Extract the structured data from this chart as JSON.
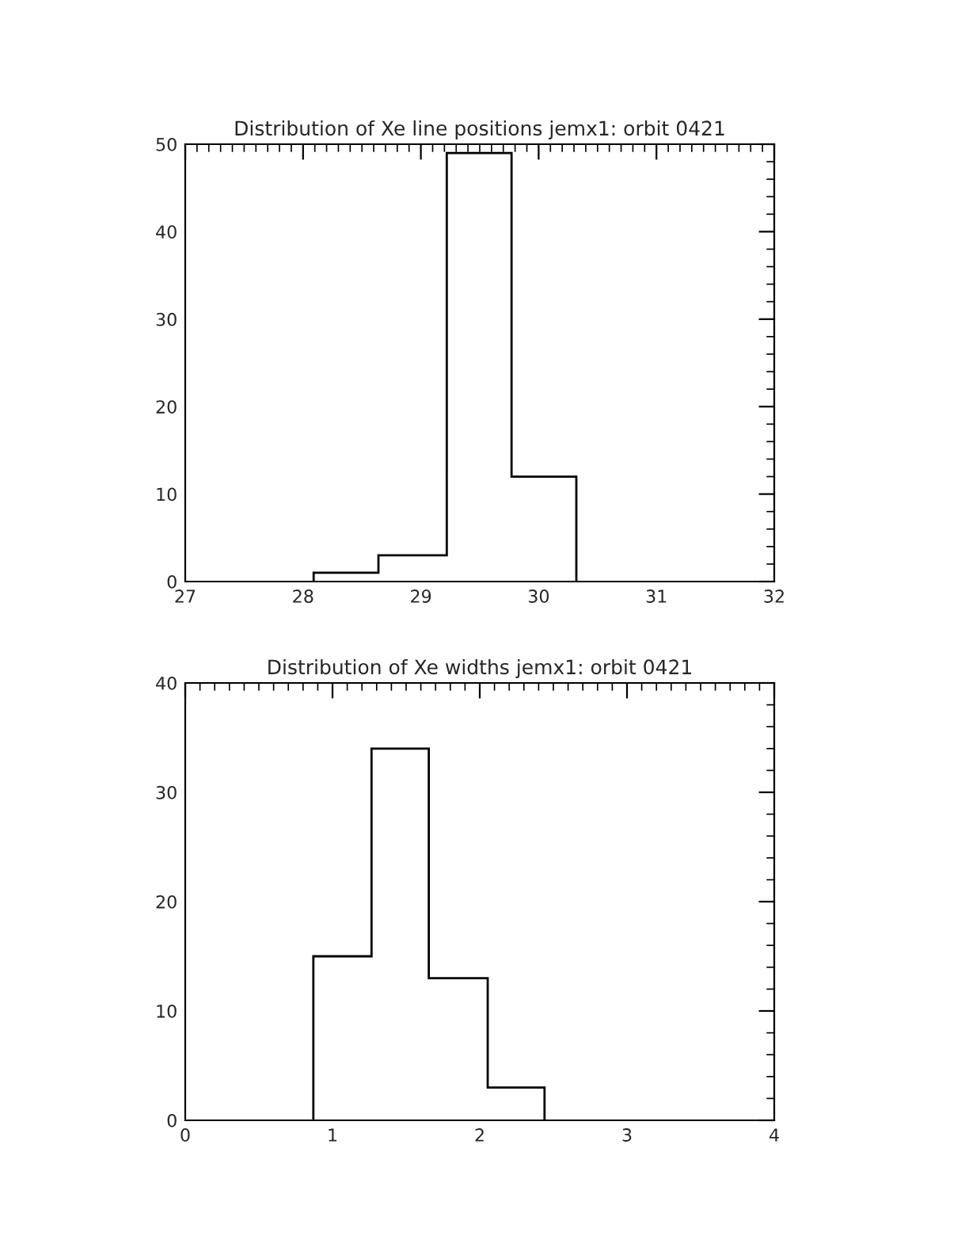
{
  "chart_data": [
    {
      "type": "histogram",
      "title": "Distribution of Xe line positions jemx1: orbit 0421",
      "bins": [
        28.09,
        28.64,
        29.22,
        29.77,
        30.32
      ],
      "values": [
        1,
        3,
        49,
        12
      ],
      "color": "#000000",
      "xlim": [
        27,
        32
      ],
      "ylim": [
        0,
        50
      ],
      "xticks": [
        27,
        28,
        29,
        30,
        31,
        32
      ],
      "yticks": [
        0,
        10,
        20,
        30,
        40,
        50
      ],
      "grid": false
    },
    {
      "type": "histogram",
      "title": "Distribution of Xe widths jemx1: orbit 0421",
      "bins": [
        0.87,
        1.265,
        1.654,
        2.054,
        2.44
      ],
      "values": [
        15,
        34,
        13,
        3
      ],
      "color": "#000000",
      "xlim": [
        0,
        4
      ],
      "ylim": [
        0,
        40
      ],
      "xticks": [
        0,
        1,
        2,
        3,
        4
      ],
      "yticks": [
        0,
        10,
        20,
        30,
        40
      ],
      "grid": false
    }
  ]
}
